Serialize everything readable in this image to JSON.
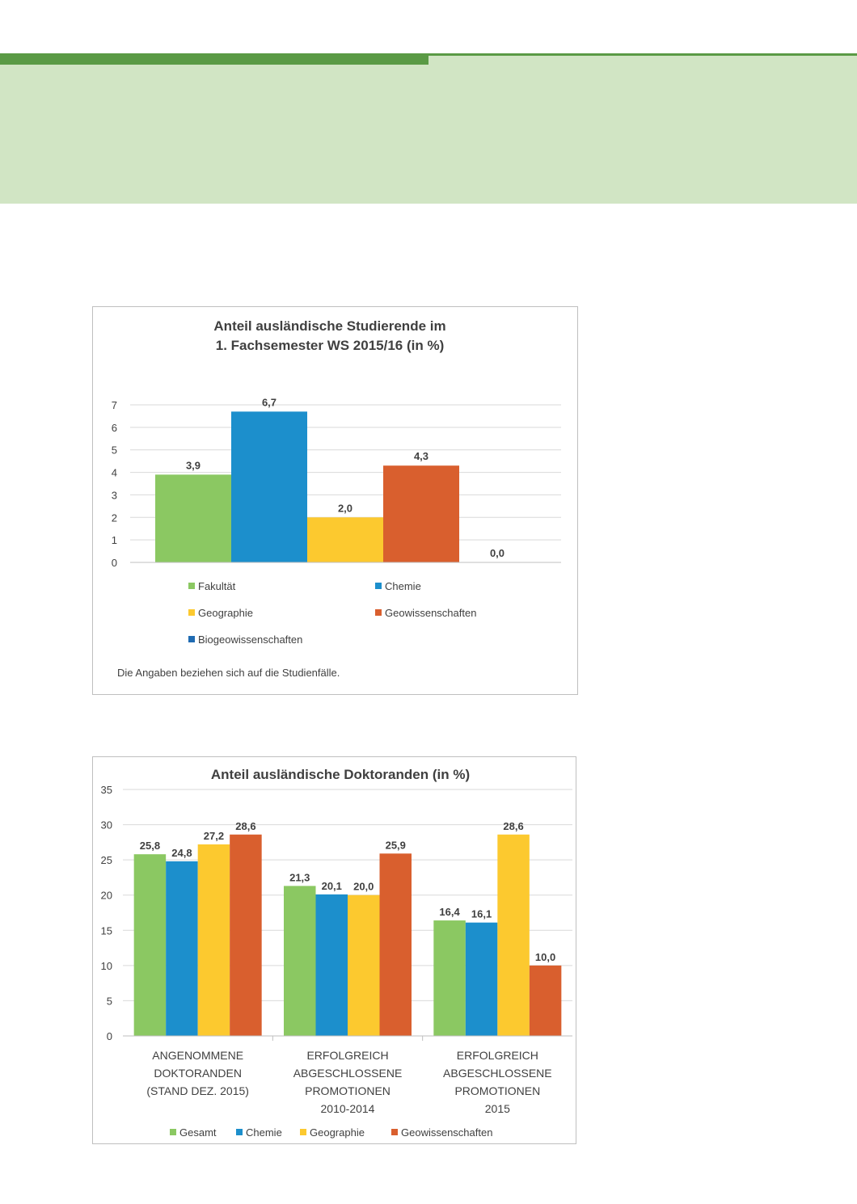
{
  "colors": {
    "green": "#8bc862",
    "blue": "#1c8fcc",
    "yellow": "#fcc92f",
    "orange": "#d95f2e",
    "darkblue": "#1f6bb2",
    "banner": "#d1e5c4",
    "accent": "#5a9a45"
  },
  "chart_data": [
    {
      "type": "bar",
      "title": "Anteil ausländische Studierende im",
      "subtitle": "1. Fachsemester WS 2015/16 (in %)",
      "ylim": [
        0,
        7
      ],
      "yticks": [
        0,
        1,
        2,
        3,
        4,
        5,
        6,
        7
      ],
      "grid": true,
      "series": [
        {
          "name": "Fakultät",
          "value": 3.9,
          "label": "3,9",
          "color": "#8bc862"
        },
        {
          "name": "Chemie",
          "value": 6.7,
          "label": "6,7",
          "color": "#1c8fcc"
        },
        {
          "name": "Geographie",
          "value": 2.0,
          "label": "2,0",
          "color": "#fcc92f"
        },
        {
          "name": "Geowissenschaften",
          "value": 4.3,
          "label": "4,3",
          "color": "#d95f2e"
        },
        {
          "name": "Biogeowissenschaften",
          "value": 0.0,
          "label": "0,0",
          "color": "#1f6bb2"
        }
      ],
      "legend_placement": "bottom",
      "note": "Die Angaben beziehen sich auf die Studienfälle."
    },
    {
      "type": "bar",
      "title": "Anteil ausländische Doktoranden (in %)",
      "ylim": [
        0,
        35
      ],
      "yticks": [
        0,
        5,
        10,
        15,
        20,
        25,
        30,
        35
      ],
      "grid": true,
      "categories": [
        [
          "ANGENOMMENE",
          "DOKTORANDEN",
          "(STAND DEZ. 2015)"
        ],
        [
          "ERFOLGREICH",
          "ABGESCHLOSSENE",
          "PROMOTIONEN",
          "2010-2014"
        ],
        [
          "ERFOLGREICH",
          "ABGESCHLOSSENE",
          "PROMOTIONEN",
          "2015"
        ]
      ],
      "series": [
        {
          "name": "Gesamt",
          "values": [
            25.8,
            21.3,
            16.4
          ],
          "labels": [
            "25,8",
            "21,3",
            "16,4"
          ],
          "color": "#8bc862"
        },
        {
          "name": "Chemie",
          "values": [
            24.8,
            20.1,
            16.1
          ],
          "labels": [
            "24,8",
            "20,1",
            "16,1"
          ],
          "color": "#1c8fcc"
        },
        {
          "name": "Geographie",
          "values": [
            27.2,
            20.0,
            28.6
          ],
          "labels": [
            "27,2",
            "20,0",
            "28,6"
          ],
          "color": "#fcc92f"
        },
        {
          "name": "Geowissenschaften",
          "values": [
            28.6,
            25.9,
            10.0
          ],
          "labels": [
            "28,6",
            "25,9",
            "10,0"
          ],
          "color": "#d95f2e"
        }
      ],
      "legend_placement": "bottom"
    }
  ]
}
